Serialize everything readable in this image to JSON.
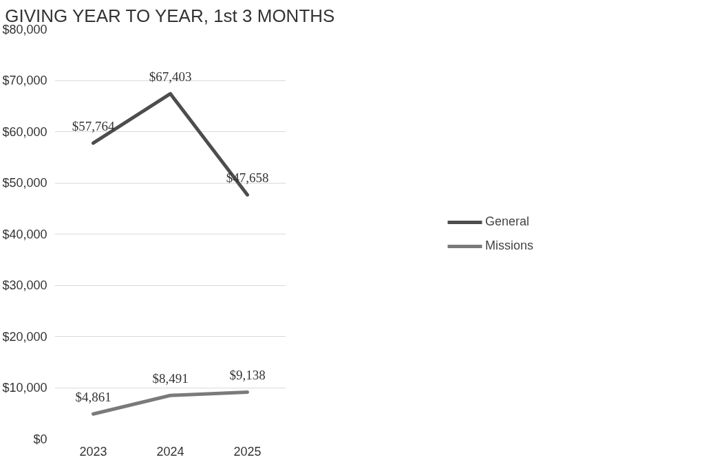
{
  "chart_data": {
    "type": "line",
    "title": "GIVING YEAR TO YEAR, 1st 3 MONTHS",
    "categories": [
      "2023",
      "2024",
      "2025"
    ],
    "series": [
      {
        "name": "General",
        "color": "#4d4d4d",
        "values": [
          57764,
          67403,
          47658
        ],
        "value_labels": [
          "$57,764",
          "$67,403",
          "$47,658"
        ]
      },
      {
        "name": "Missions",
        "color": "#7a7a7a",
        "values": [
          4861,
          8491,
          9138
        ],
        "value_labels": [
          "$4,861",
          "$8,491",
          "$9,138"
        ]
      }
    ],
    "ylim": [
      0,
      80000
    ],
    "yticks": [
      {
        "value": 0,
        "label": "$0"
      },
      {
        "value": 10000,
        "label": "$10,000"
      },
      {
        "value": 20000,
        "label": "$20,000"
      },
      {
        "value": 30000,
        "label": "$30,000"
      },
      {
        "value": 40000,
        "label": "$40,000"
      },
      {
        "value": 50000,
        "label": "$50,000"
      },
      {
        "value": 60000,
        "label": "$60,000"
      },
      {
        "value": 70000,
        "label": "$70,000"
      },
      {
        "value": 80000,
        "label": "$80,000"
      }
    ],
    "grid": "y",
    "legend": "right",
    "marker": "none",
    "line_style": "solid"
  }
}
